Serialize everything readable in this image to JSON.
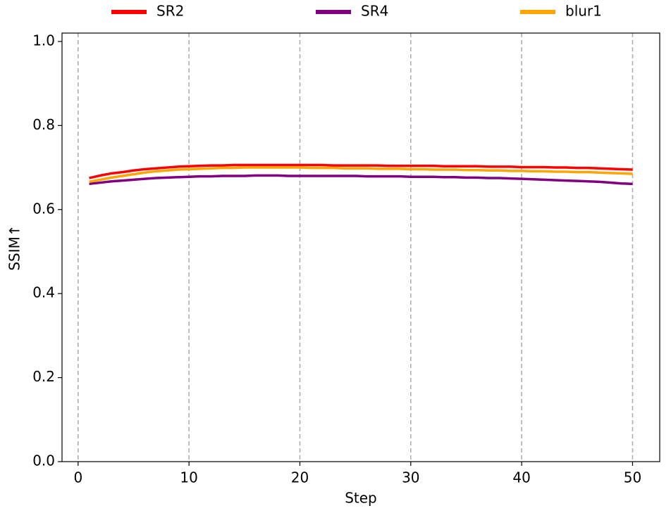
{
  "chart_data": {
    "type": "line",
    "x_label": "Step",
    "y_label": "SSIM↑",
    "x": [
      1,
      2,
      3,
      4,
      5,
      6,
      7,
      8,
      9,
      10,
      11,
      12,
      13,
      14,
      15,
      16,
      17,
      18,
      19,
      20,
      21,
      22,
      23,
      24,
      25,
      26,
      27,
      28,
      29,
      30,
      31,
      32,
      33,
      34,
      35,
      36,
      37,
      38,
      39,
      40,
      41,
      42,
      43,
      44,
      45,
      46,
      47,
      48,
      49,
      50
    ],
    "series": [
      {
        "name": "SR2",
        "color": "#ff0000",
        "values": [
          0.675,
          0.681,
          0.686,
          0.689,
          0.693,
          0.696,
          0.698,
          0.7,
          0.702,
          0.703,
          0.704,
          0.705,
          0.705,
          0.706,
          0.706,
          0.706,
          0.706,
          0.706,
          0.706,
          0.706,
          0.706,
          0.706,
          0.705,
          0.705,
          0.705,
          0.705,
          0.705,
          0.704,
          0.704,
          0.704,
          0.704,
          0.704,
          0.703,
          0.703,
          0.703,
          0.703,
          0.702,
          0.702,
          0.702,
          0.701,
          0.701,
          0.701,
          0.7,
          0.7,
          0.699,
          0.699,
          0.698,
          0.697,
          0.696,
          0.695
        ]
      },
      {
        "name": "SR4",
        "color": "#800080",
        "values": [
          0.661,
          0.664,
          0.667,
          0.669,
          0.671,
          0.673,
          0.675,
          0.676,
          0.677,
          0.678,
          0.679,
          0.679,
          0.68,
          0.68,
          0.68,
          0.681,
          0.681,
          0.681,
          0.68,
          0.68,
          0.68,
          0.68,
          0.68,
          0.68,
          0.68,
          0.679,
          0.679,
          0.679,
          0.679,
          0.678,
          0.678,
          0.678,
          0.677,
          0.677,
          0.676,
          0.676,
          0.675,
          0.675,
          0.674,
          0.673,
          0.672,
          0.671,
          0.67,
          0.669,
          0.668,
          0.667,
          0.666,
          0.664,
          0.662,
          0.661
        ]
      },
      {
        "name": "blur1",
        "color": "#ffa500",
        "values": [
          0.666,
          0.671,
          0.676,
          0.68,
          0.684,
          0.688,
          0.691,
          0.693,
          0.695,
          0.696,
          0.697,
          0.698,
          0.699,
          0.699,
          0.7,
          0.7,
          0.7,
          0.7,
          0.7,
          0.7,
          0.699,
          0.699,
          0.699,
          0.698,
          0.698,
          0.698,
          0.697,
          0.697,
          0.697,
          0.696,
          0.696,
          0.695,
          0.695,
          0.695,
          0.694,
          0.694,
          0.693,
          0.693,
          0.692,
          0.692,
          0.691,
          0.691,
          0.69,
          0.69,
          0.689,
          0.689,
          0.688,
          0.687,
          0.686,
          0.685
        ]
      }
    ],
    "xlim": [
      -1.45,
      52.45
    ],
    "xticks": [
      0,
      10,
      20,
      30,
      40,
      50
    ],
    "ylim": [
      0,
      1.02
    ],
    "yticks": [
      {
        "value": 0,
        "label": "0.0"
      },
      0.2,
      0.4,
      0.6,
      0.8,
      {
        "value": 1,
        "label": "1.0"
      }
    ],
    "grid": "x",
    "legend": "top"
  }
}
